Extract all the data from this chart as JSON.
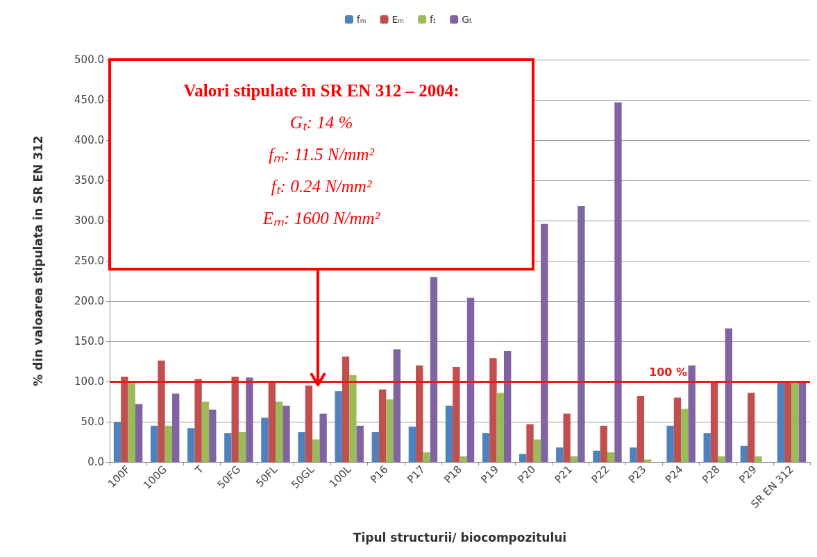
{
  "chart_data": {
    "type": "bar",
    "xlabel": "Tipul structurii/ biocompozitului",
    "ylabel": "% din valoarea stipulata in SR EN 312",
    "categories": [
      "100F",
      "100G",
      "T",
      "50FG",
      "50FL",
      "50GL",
      "100L",
      "P16",
      "P17",
      "P18",
      "P19",
      "P20",
      "P21",
      "P22",
      "P23",
      "P24",
      "P28",
      "P29",
      "SR EN 312"
    ],
    "series": [
      {
        "name": "fₘ",
        "color": "#4f81bd",
        "values": [
          50,
          45,
          42,
          36,
          55,
          37,
          88,
          37,
          44,
          70,
          36,
          10,
          18,
          14,
          18,
          45,
          36,
          20,
          100
        ]
      },
      {
        "name": "Eₘ",
        "color": "#c0504d",
        "values": [
          106,
          126,
          103,
          106,
          100,
          95,
          131,
          90,
          120,
          118,
          129,
          47,
          60,
          45,
          82,
          80,
          100,
          86,
          100
        ]
      },
      {
        "name": "fₜ",
        "color": "#9bbb59",
        "values": [
          98,
          45,
          75,
          37,
          75,
          28,
          108,
          78,
          12,
          7,
          86,
          28,
          7,
          12,
          3,
          66,
          7,
          7,
          100
        ]
      },
      {
        "name": "Gₜ",
        "color": "#8064a2",
        "values": [
          72,
          85,
          65,
          105,
          70,
          60,
          45,
          140,
          230,
          204,
          138,
          296,
          318,
          447,
          null,
          120,
          166,
          null,
          100
        ]
      }
    ],
    "ylim": [
      0,
      500
    ],
    "yticks": [
      {
        "value": 0,
        "label": "0.0"
      },
      {
        "value": 50,
        "label": "50.0"
      },
      {
        "value": 100,
        "label": "100.0"
      },
      {
        "value": 150,
        "label": "150.0"
      },
      {
        "value": 200,
        "label": "200.0"
      },
      {
        "value": 250,
        "label": "250.0"
      },
      {
        "value": 300,
        "label": "300.0"
      },
      {
        "value": 350,
        "label": "350.0"
      },
      {
        "value": 400,
        "label": "400.0"
      },
      {
        "value": 450,
        "label": "450.0"
      },
      {
        "value": 500,
        "label": "500.0"
      }
    ],
    "grid": "y",
    "legend": "top",
    "ref_lines": [
      {
        "axis": "y",
        "value": 100,
        "label": "100 %",
        "color": "#e0201c"
      }
    ],
    "annotations": [
      "Valori stipulate în SR EN 312 – 2004:",
      "Gₜ: 14 %",
      "fₘ: 11.5 N/mm²",
      "fₜ: 0.24 N/mm²",
      "Eₘ: 1600 N/mm²"
    ]
  }
}
